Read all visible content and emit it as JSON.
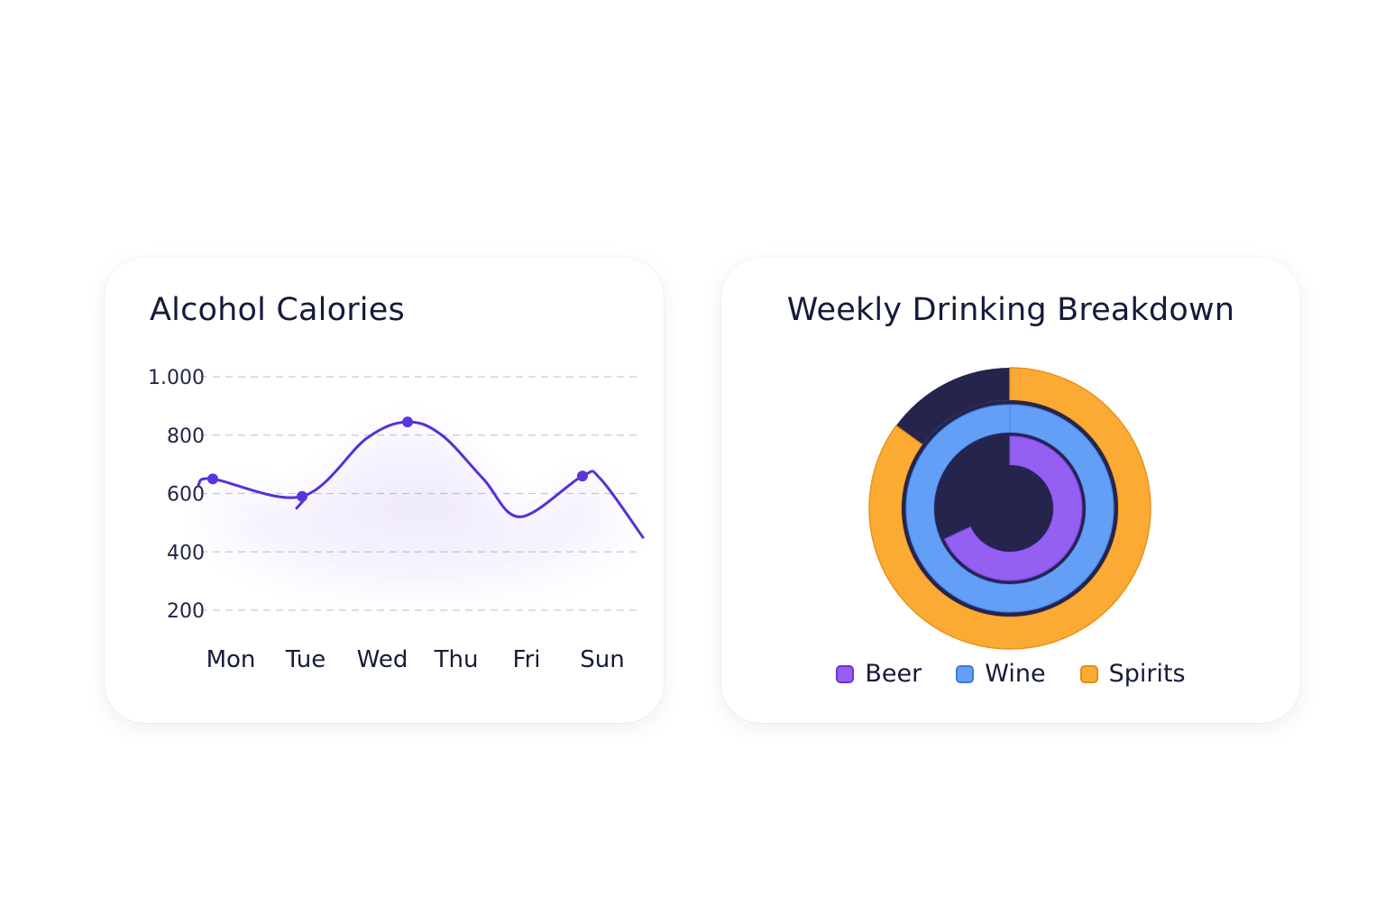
{
  "colors": {
    "line": "#5630d6",
    "point": "#5a35dc",
    "area": "#8f6cf2",
    "grid": "#c9c9d2",
    "donut_center": "#25244d",
    "beer": "#9560f2",
    "wine": "#649ff7",
    "spirits": "#fbab33",
    "dark_segment": "#25244d"
  },
  "chart_data": [
    {
      "type": "line",
      "title": "Alcohol Calories",
      "xlabel": "",
      "ylabel": "",
      "yticks": [
        1000,
        800,
        600,
        400,
        200
      ],
      "ytick_labels": [
        "1.000",
        "800",
        "600",
        "400",
        "200"
      ],
      "ylim": [
        200,
        1000
      ],
      "x_labels": [
        "Mon",
        "Tue",
        "Wed",
        "Thu",
        "Fri",
        "Sun"
      ],
      "grid": true,
      "series": [
        {
          "values": [
            630,
            650,
            590,
            790,
            845,
            800,
            650,
            520,
            660,
            650,
            450
          ],
          "marked_points": [
            650,
            590,
            845,
            660
          ]
        }
      ]
    },
    {
      "type": "pie",
      "title": "Weekly Drinking Breakdown",
      "legend_position": "bottom",
      "legend": [
        "Beer",
        "Wine",
        "Spirits"
      ],
      "rings": [
        {
          "name": "Spirits",
          "filled_fraction": 0.85,
          "remaining_fraction": 0.15
        },
        {
          "name": "Wine",
          "filled_fraction": 1.0
        },
        {
          "name": "Beer",
          "filled_fraction": 0.68
        }
      ]
    }
  ]
}
